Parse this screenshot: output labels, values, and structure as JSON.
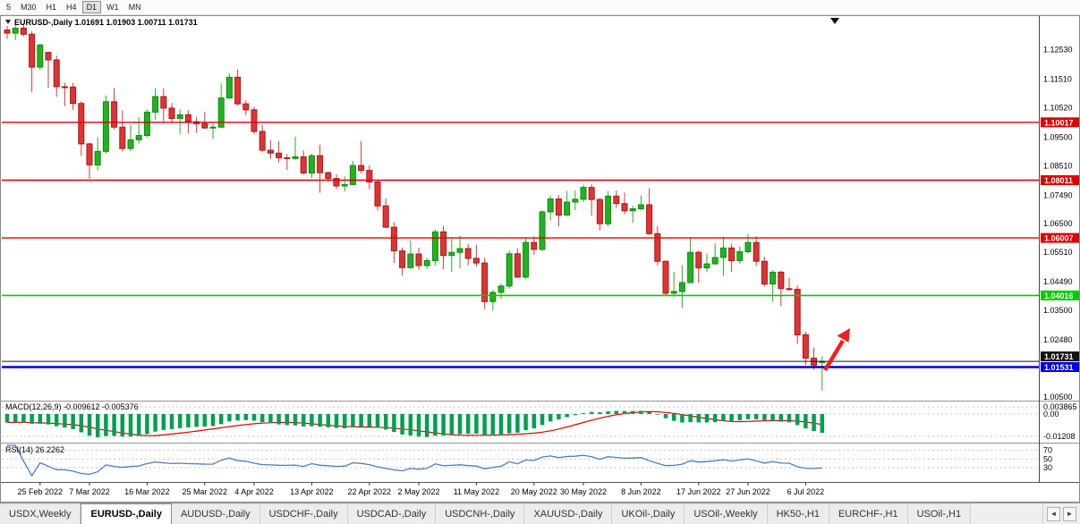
{
  "toolbar": {
    "timeframes": [
      "5",
      "M30",
      "H1",
      "H4",
      "D1",
      "W1",
      "MN"
    ],
    "active_timeframe": "D1"
  },
  "icons": {
    "scroll_left": "◄",
    "scroll_right": "►",
    "symbol_dropdown": "▼",
    "chart_shift_marker": "▼"
  },
  "theme": {
    "bull": "#21B321",
    "bullEdge": "#0E8A0E",
    "bear": "#DF3434",
    "bearEdge": "#A81818",
    "macd": "#00A050",
    "signal": "#E00000",
    "rsi": "#4A7EBB",
    "grid": "#C4C4C4",
    "arrow": "#F02020",
    "axis_line": "#444444"
  },
  "chart": {
    "symbol": "EURUSD-,Daily",
    "ohlc": {
      "open": "1.01691",
      "high": "1.01903",
      "low": "1.00711",
      "close": "1.01731"
    },
    "levels": [
      {
        "price": 1.10017,
        "label": "1.10017",
        "color": "#E00000",
        "width": 1.4,
        "kind": "resistance"
      },
      {
        "price": 1.08011,
        "label": "1.08011",
        "color": "#E00000",
        "width": 1.4,
        "kind": "resistance"
      },
      {
        "price": 1.06007,
        "label": "1.06007",
        "color": "#E00000",
        "width": 1.4,
        "kind": "resistance"
      },
      {
        "price": 1.04016,
        "label": "1.04016",
        "color": "#00CC00",
        "width": 1.6,
        "kind": "support"
      },
      {
        "price": 1.01531,
        "label": "1.01531",
        "color": "#0000E0",
        "width": 2.4,
        "kind": "support"
      }
    ],
    "current_price": {
      "price": 1.01731,
      "label": "1.01731",
      "color": "#111111"
    }
  },
  "chart_data": {
    "type": "candlestick",
    "symbol": "EURUSD",
    "timeframe": "Daily",
    "title": "EURUSD-,Daily 1.01691 1.01903 1.00711 1.01731",
    "y_ticks": [
      "1.12530",
      "1.11510",
      "1.10520",
      "1.09500",
      "1.08510",
      "1.07490",
      "1.06500",
      "1.05510",
      "1.04490",
      "1.03500",
      "1.02480",
      "1.00500"
    ],
    "x_labels": [
      {
        "i": 4,
        "t": "25 Feb 2022"
      },
      {
        "i": 10,
        "t": "7 Mar 2022"
      },
      {
        "i": 17,
        "t": "16 Mar 2022"
      },
      {
        "i": 24,
        "t": "25 Mar 2022"
      },
      {
        "i": 30,
        "t": "4 Apr 2022"
      },
      {
        "i": 37,
        "t": "13 Apr 2022"
      },
      {
        "i": 44,
        "t": "22 Apr 2022"
      },
      {
        "i": 50,
        "t": "2 May 2022"
      },
      {
        "i": 57,
        "t": "11 May 2022"
      },
      {
        "i": 64,
        "t": "20 May 2022"
      },
      {
        "i": 70,
        "t": "30 May 2022"
      },
      {
        "i": 77,
        "t": "8 Jun 2022"
      },
      {
        "i": 84,
        "t": "17 Jun 2022"
      },
      {
        "i": 90,
        "t": "27 Jun 2022"
      },
      {
        "i": 97,
        "t": "6 Jul 2022"
      }
    ],
    "candles": [
      [
        1.1322,
        1.1336,
        1.1291,
        1.1311
      ],
      [
        1.1311,
        1.1348,
        1.1287,
        1.1328
      ],
      [
        1.1328,
        1.1343,
        1.13,
        1.1307
      ],
      [
        1.1307,
        1.1317,
        1.1106,
        1.1193
      ],
      [
        1.1193,
        1.1274,
        1.1184,
        1.127
      ],
      [
        1.1244,
        1.1247,
        1.1121,
        1.1218
      ],
      [
        1.1218,
        1.1233,
        1.109,
        1.1125
      ],
      [
        1.1125,
        1.1139,
        1.1058,
        1.1124
      ],
      [
        1.1124,
        1.1139,
        1.1045,
        1.1067
      ],
      [
        1.1067,
        1.1075,
        1.0885,
        1.0927
      ],
      [
        1.0927,
        1.0931,
        1.0806,
        1.0854
      ],
      [
        1.0854,
        1.095,
        1.0834,
        1.0901
      ],
      [
        1.0901,
        1.1095,
        1.0893,
        1.1073
      ],
      [
        1.1073,
        1.1121,
        1.0977,
        1.0985
      ],
      [
        1.0985,
        1.1043,
        1.0901,
        1.0911
      ],
      [
        1.0911,
        1.0995,
        1.0902,
        1.0941
      ],
      [
        1.0941,
        1.102,
        1.0928,
        1.0956
      ],
      [
        1.0956,
        1.1046,
        1.095,
        1.1037
      ],
      [
        1.1037,
        1.1119,
        1.1011,
        1.1091
      ],
      [
        1.1091,
        1.112,
        1.1003,
        1.1051
      ],
      [
        1.1051,
        1.1069,
        1.1004,
        1.1015
      ],
      [
        1.1015,
        1.1046,
        1.0961,
        1.1028
      ],
      [
        1.1028,
        1.1044,
        1.0963,
        1.1004
      ],
      [
        1.1004,
        1.1021,
        1.0965,
        1.0997
      ],
      [
        1.0997,
        1.1039,
        1.0979,
        1.0982
      ],
      [
        1.0982,
        1.0999,
        1.0944,
        1.0985
      ],
      [
        1.0985,
        1.1137,
        1.0982,
        1.1086
      ],
      [
        1.1086,
        1.1171,
        1.1084,
        1.1158
      ],
      [
        1.1158,
        1.1185,
        1.106,
        1.1066
      ],
      [
        1.1066,
        1.1077,
        1.1027,
        1.1045
      ],
      [
        1.1045,
        1.1056,
        1.096,
        1.097
      ],
      [
        1.097,
        1.0992,
        1.0898,
        1.0905
      ],
      [
        1.0905,
        1.0939,
        1.0875,
        1.0895
      ],
      [
        1.0895,
        1.0937,
        1.0863,
        1.0879
      ],
      [
        1.0879,
        1.0892,
        1.0836,
        1.0876
      ],
      [
        1.0876,
        1.0952,
        1.0872,
        1.0882
      ],
      [
        1.0882,
        1.0904,
        1.0821,
        1.0826
      ],
      [
        1.0826,
        1.0893,
        1.0809,
        1.0886
      ],
      [
        1.0886,
        1.0924,
        1.0757,
        1.0827
      ],
      [
        1.0827,
        1.0832,
        1.0797,
        1.0807
      ],
      [
        1.0807,
        1.0822,
        1.077,
        1.0781
      ],
      [
        1.0781,
        1.0814,
        1.0761,
        1.0786
      ],
      [
        1.0786,
        1.0867,
        1.0783,
        1.0852
      ],
      [
        1.0852,
        1.0937,
        1.0824,
        1.0835
      ],
      [
        1.0835,
        1.0853,
        1.077,
        1.0795
      ],
      [
        1.0795,
        1.08,
        1.0697,
        1.0712
      ],
      [
        1.0712,
        1.0738,
        1.0635,
        1.0638
      ],
      [
        1.0638,
        1.0655,
        1.0514,
        1.0556
      ],
      [
        1.0556,
        1.0568,
        1.0471,
        1.0498
      ],
      [
        1.0498,
        1.0593,
        1.0493,
        1.0545
      ],
      [
        1.0545,
        1.0567,
        1.049,
        1.0505
      ],
      [
        1.0505,
        1.0532,
        1.0494,
        1.0522
      ],
      [
        1.0522,
        1.0631,
        1.0506,
        1.0622
      ],
      [
        1.0622,
        1.0642,
        1.0492,
        1.054
      ],
      [
        1.054,
        1.0599,
        1.0483,
        1.0551
      ],
      [
        1.0551,
        1.0609,
        1.0495,
        1.0564
      ],
      [
        1.0564,
        1.058,
        1.0506,
        1.053
      ],
      [
        1.053,
        1.0577,
        1.0501,
        1.0514
      ],
      [
        1.0514,
        1.0531,
        1.0354,
        1.038
      ],
      [
        1.038,
        1.042,
        1.0348,
        1.0412
      ],
      [
        1.0412,
        1.0443,
        1.0389,
        1.0434
      ],
      [
        1.0434,
        1.0557,
        1.0425,
        1.0546
      ],
      [
        1.0546,
        1.0564,
        1.0462,
        1.0465
      ],
      [
        1.0465,
        1.0599,
        1.0459,
        1.0585
      ],
      [
        1.0585,
        1.0607,
        1.0543,
        1.0561
      ],
      [
        1.0561,
        1.0697,
        1.0556,
        1.0691
      ],
      [
        1.0691,
        1.0748,
        1.0661,
        1.0736
      ],
      [
        1.0736,
        1.0749,
        1.0641,
        1.068
      ],
      [
        1.068,
        1.0764,
        1.0677,
        1.0725
      ],
      [
        1.0725,
        1.0765,
        1.0697,
        1.0735
      ],
      [
        1.0735,
        1.0786,
        1.0725,
        1.0776
      ],
      [
        1.0776,
        1.0787,
        1.0678,
        1.0734
      ],
      [
        1.0734,
        1.0739,
        1.0627,
        1.065
      ],
      [
        1.065,
        1.0764,
        1.0641,
        1.0746
      ],
      [
        1.0746,
        1.0765,
        1.0705,
        1.072
      ],
      [
        1.072,
        1.0758,
        1.0683,
        1.0695
      ],
      [
        1.0695,
        1.0713,
        1.0653,
        1.0702
      ],
      [
        1.0702,
        1.0748,
        1.0697,
        1.0716
      ],
      [
        1.0716,
        1.0773,
        1.0611,
        1.0616
      ],
      [
        1.0616,
        1.0642,
        1.0506,
        1.052
      ],
      [
        1.052,
        1.0522,
        1.0399,
        1.0409
      ],
      [
        1.0409,
        1.0484,
        1.0397,
        1.0415
      ],
      [
        1.0415,
        1.0507,
        1.0359,
        1.0446
      ],
      [
        1.0446,
        1.0601,
        1.0445,
        1.0551
      ],
      [
        1.0551,
        1.0557,
        1.0445,
        1.0497
      ],
      [
        1.0497,
        1.0546,
        1.0482,
        1.0511
      ],
      [
        1.0511,
        1.0582,
        1.0508,
        1.0533
      ],
      [
        1.0533,
        1.0605,
        1.0469,
        1.0566
      ],
      [
        1.0566,
        1.058,
        1.0483,
        1.0522
      ],
      [
        1.0522,
        1.0571,
        1.0512,
        1.0553
      ],
      [
        1.0553,
        1.0615,
        1.0547,
        1.0585
      ],
      [
        1.0585,
        1.0606,
        1.0503,
        1.052
      ],
      [
        1.052,
        1.0535,
        1.0433,
        1.0441
      ],
      [
        1.0441,
        1.0489,
        1.038,
        1.0482
      ],
      [
        1.0482,
        1.0487,
        1.0365,
        1.0425
      ],
      [
        1.0425,
        1.0463,
        1.0417,
        1.0423
      ],
      [
        1.0423,
        1.0436,
        1.0234,
        1.0265
      ],
      [
        1.0265,
        1.0276,
        1.0161,
        1.0184
      ],
      [
        1.0184,
        1.0221,
        1.0144,
        1.016
      ],
      [
        1.01691,
        1.01903,
        1.00711,
        1.01731
      ]
    ]
  },
  "macd": {
    "label": "MACD(12,26,9) -0.009612 -0.005376",
    "value": -0.009612,
    "signal": -0.005376,
    "ticks": [
      {
        "v": 0.003865,
        "label": "0.003865"
      },
      {
        "v": 0,
        "label": "0.00"
      },
      {
        "v": -0.01208,
        "label": "-0.01208"
      }
    ]
  },
  "rsi": {
    "label": "RSI(14) 26.2262",
    "value": 26.2262,
    "levels": [
      70,
      50,
      30
    ]
  },
  "tabs": {
    "items": [
      "USDX,Weekly",
      "EURUSD-,Daily",
      "AUDUSD-,Daily",
      "USDCHF-,Daily",
      "USDCAD-,Daily",
      "USDCNH-,Daily",
      "XAUUSD-,Daily",
      "UKOil-,Daily",
      "USOil-,Weekly",
      "HK50-,H1",
      "EURCHF-,H1",
      "USOil-,H1"
    ],
    "active": "EURUSD-,Daily"
  }
}
